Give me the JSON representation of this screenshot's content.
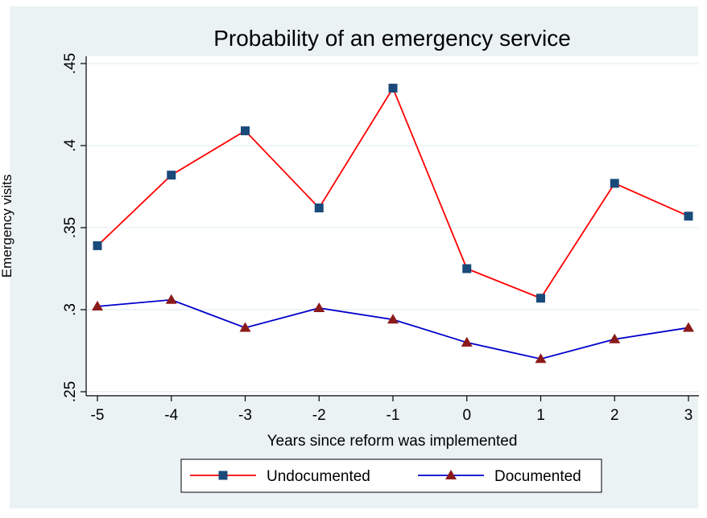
{
  "chart_data": {
    "type": "line",
    "title": "Probability of an emergency service",
    "xlabel": "Years since reform was implemented",
    "ylabel": "Emergency visits",
    "x": [
      -5,
      -4,
      -3,
      -2,
      -1,
      0,
      1,
      2,
      3
    ],
    "x_tick_labels": [
      "-5",
      "-4",
      "-3",
      "-2",
      "-1",
      "0",
      "1",
      "2",
      "3"
    ],
    "y_ticks": [
      0.25,
      0.3,
      0.35,
      0.4,
      0.45
    ],
    "y_tick_labels": [
      ".25",
      ".3",
      ".35",
      ".4",
      ".45"
    ],
    "xlim": [
      -5,
      3
    ],
    "ylim": [
      0.25,
      0.45
    ],
    "grid": true,
    "legend_position": "bottom",
    "series": [
      {
        "name": "Undocumented",
        "color": "#ff0000",
        "marker": "square",
        "marker_color": "#1a4a7a",
        "values": [
          0.339,
          0.382,
          0.409,
          0.362,
          0.435,
          0.325,
          0.307,
          0.377,
          0.357
        ]
      },
      {
        "name": "Documented",
        "color": "#0000cc",
        "marker": "triangle",
        "marker_color": "#8b1a1a",
        "values": [
          0.302,
          0.306,
          0.289,
          0.301,
          0.294,
          0.28,
          0.27,
          0.282,
          0.289
        ]
      }
    ],
    "colors": {
      "outer_background": "#eaf2f3",
      "plot_background": "#ffffff",
      "grid": "#eaf2f3"
    }
  }
}
